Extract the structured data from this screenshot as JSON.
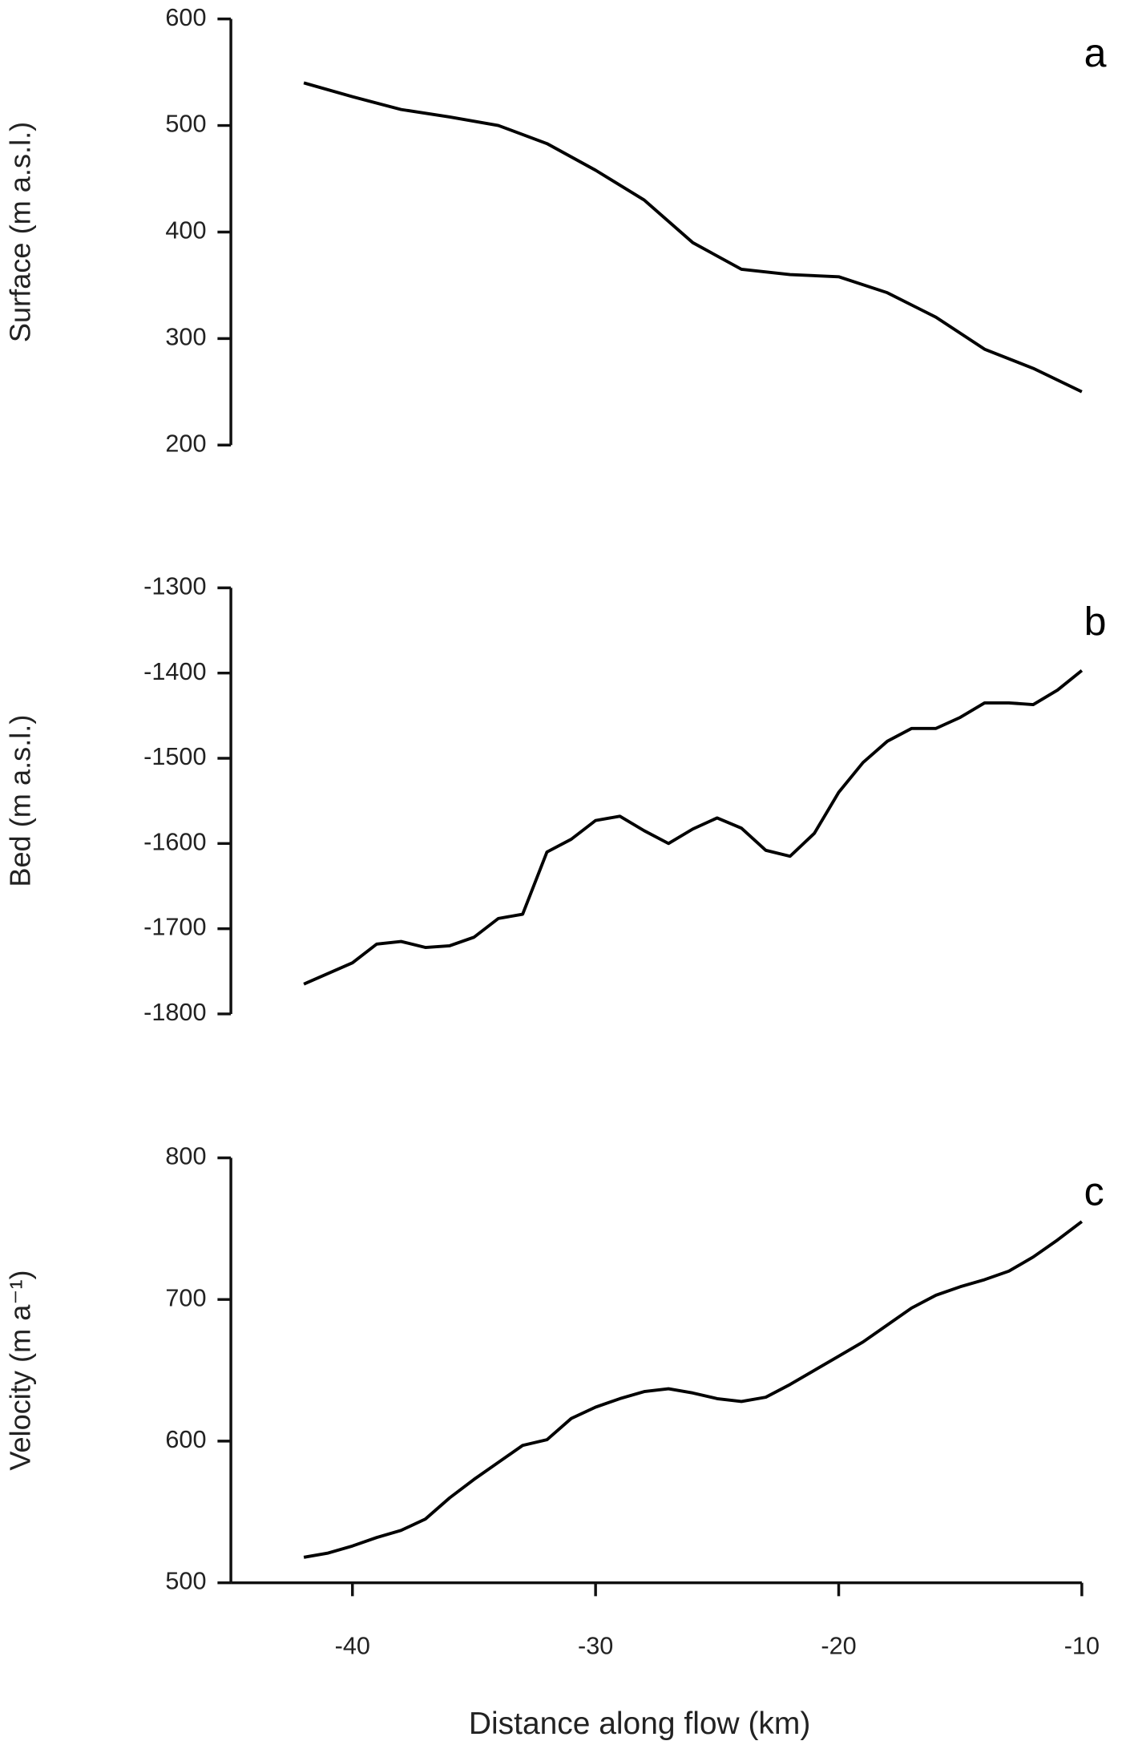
{
  "chart_data": [
    {
      "type": "line",
      "panel_label": "a",
      "y_label": "Surface  (m a.s.l.)",
      "x": [
        -42,
        -40,
        -38,
        -36,
        -34,
        -32,
        -30,
        -28,
        -26,
        -24,
        -22,
        -20,
        -18,
        -16,
        -14,
        -12,
        -10
      ],
      "series": [
        {
          "color": "#000000",
          "values": [
            540,
            527,
            515,
            508,
            500,
            483,
            458,
            430,
            390,
            365,
            360,
            358,
            343,
            320,
            290,
            272,
            250
          ]
        }
      ],
      "xlim": [
        -45,
        -10
      ],
      "ylim": [
        200,
        600
      ],
      "yticks": [
        200,
        300,
        400,
        500,
        600
      ]
    },
    {
      "type": "line",
      "panel_label": "b",
      "y_label": "Bed  (m a.s.l.)",
      "x": [
        -42,
        -40,
        -39,
        -38,
        -37,
        -36,
        -35,
        -34,
        -33,
        -32,
        -31,
        -30,
        -29,
        -28,
        -27,
        -26,
        -25,
        -24,
        -23,
        -22,
        -21,
        -20,
        -19,
        -18,
        -17,
        -16,
        -15,
        -14,
        -13,
        -12,
        -11,
        -10
      ],
      "series": [
        {
          "color": "#000000",
          "values": [
            -1765,
            -1740,
            -1718,
            -1715,
            -1722,
            -1720,
            -1710,
            -1688,
            -1683,
            -1610,
            -1595,
            -1573,
            -1568,
            -1585,
            -1600,
            -1583,
            -1570,
            -1582,
            -1608,
            -1615,
            -1588,
            -1540,
            -1505,
            -1480,
            -1465,
            -1465,
            -1452,
            -1435,
            -1435,
            -1437,
            -1420,
            -1397
          ]
        }
      ],
      "xlim": [
        -45,
        -10
      ],
      "ylim": [
        -1800,
        -1300
      ],
      "yticks": [
        -1800,
        -1700,
        -1600,
        -1500,
        -1400,
        -1300
      ]
    },
    {
      "type": "line",
      "panel_label": "c",
      "y_label": "Velocity  (m a⁻¹)",
      "x_label": "Distance  along flow  (km)",
      "x": [
        -42,
        -41,
        -40,
        -39,
        -38,
        -37,
        -36,
        -35,
        -34,
        -33,
        -32,
        -31,
        -30,
        -29,
        -28,
        -27,
        -26,
        -25,
        -24,
        -23,
        -22,
        -21,
        -20,
        -19,
        -18,
        -17,
        -16,
        -15,
        -14,
        -13,
        -12,
        -11,
        -10
      ],
      "series": [
        {
          "color": "#000000",
          "values": [
            518,
            521,
            526,
            532,
            537,
            545,
            560,
            573,
            585,
            597,
            601,
            616,
            624,
            630,
            635,
            637,
            634,
            630,
            628,
            631,
            640,
            650,
            660,
            670,
            682,
            694,
            703,
            709,
            714,
            720,
            730,
            742,
            755
          ]
        }
      ],
      "xlim": [
        -45,
        -10
      ],
      "xticks": [
        -40,
        -30,
        -20,
        -10
      ],
      "ylim": [
        500,
        800
      ],
      "yticks": [
        500,
        600,
        700,
        800
      ]
    }
  ]
}
